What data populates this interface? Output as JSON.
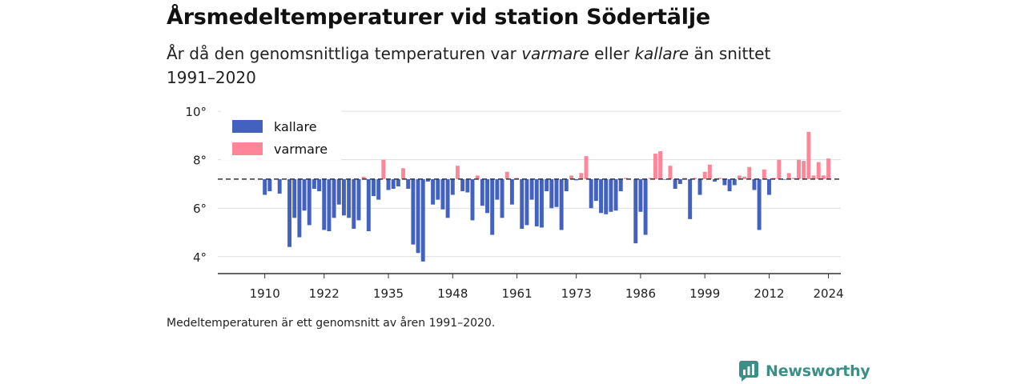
{
  "title": "Årsmedeltemperaturer vid station Södertälje",
  "subtitle": {
    "part1": "År då den genomsnittliga temperaturen var ",
    "warm_word": "varmare",
    "part2": " eller ",
    "cold_word": "kallare",
    "part3": " än snittet 1991–2020"
  },
  "note": "Medeltemperaturen är ett genomsnitt av åren 1991–2020.",
  "brand": {
    "name": "Newsworthy",
    "icon": "newsworthy-chart-icon",
    "color": "#3a8f86"
  },
  "chart_data": {
    "type": "bar",
    "baseline": 7.2,
    "baseline_style": "dashed",
    "ylim": [
      3.3,
      10.3
    ],
    "xlim": [
      1900.5,
      2026.5
    ],
    "yticks": [
      4,
      6,
      8,
      10
    ],
    "ytick_labels": [
      "4°",
      "6°",
      "8°",
      "10°"
    ],
    "xticks": [
      1910,
      1922,
      1935,
      1948,
      1961,
      1973,
      1986,
      1999,
      2012,
      2024
    ],
    "grid": true,
    "legend_position": "top-left",
    "colors": {
      "kallare": "#4361be",
      "varmare": "#ff8699",
      "grid": "#dddddd",
      "baseline": "#333333",
      "axis": "#333333"
    },
    "series": [
      {
        "name": "kallare",
        "color": "#4361be"
      },
      {
        "name": "varmare",
        "color": "#ff8699"
      }
    ],
    "x": [
      1910,
      1911,
      1912,
      1913,
      1914,
      1915,
      1916,
      1917,
      1918,
      1919,
      1920,
      1921,
      1922,
      1923,
      1924,
      1925,
      1926,
      1927,
      1928,
      1929,
      1930,
      1931,
      1932,
      1933,
      1934,
      1935,
      1936,
      1937,
      1938,
      1939,
      1940,
      1941,
      1942,
      1943,
      1944,
      1945,
      1946,
      1947,
      1948,
      1949,
      1950,
      1951,
      1952,
      1953,
      1954,
      1955,
      1956,
      1957,
      1958,
      1959,
      1960,
      1961,
      1962,
      1963,
      1964,
      1965,
      1966,
      1967,
      1968,
      1969,
      1970,
      1971,
      1972,
      1973,
      1974,
      1975,
      1976,
      1977,
      1978,
      1979,
      1980,
      1981,
      1982,
      1983,
      1984,
      1985,
      1986,
      1987,
      1988,
      1989,
      1990,
      1991,
      1992,
      1993,
      1994,
      1995,
      1996,
      1997,
      1998,
      1999,
      2000,
      2001,
      2002,
      2003,
      2004,
      2005,
      2006,
      2007,
      2008,
      2009,
      2010,
      2011,
      2012,
      2013,
      2014,
      2015,
      2016,
      2017,
      2018,
      2019,
      2020,
      2021,
      2022,
      2023,
      2024
    ],
    "values": [
      6.55,
      6.7,
      null,
      6.6,
      null,
      4.4,
      5.6,
      4.8,
      5.9,
      5.3,
      6.8,
      6.7,
      5.1,
      5.05,
      5.6,
      6.15,
      5.7,
      5.6,
      5.15,
      5.5,
      7.3,
      5.05,
      6.5,
      6.35,
      8.0,
      6.75,
      6.8,
      6.9,
      7.65,
      6.8,
      4.5,
      4.15,
      3.8,
      7.1,
      6.15,
      6.35,
      5.95,
      5.6,
      6.55,
      7.75,
      6.7,
      6.65,
      5.5,
      7.35,
      6.1,
      5.8,
      4.9,
      6.35,
      5.6,
      7.5,
      6.15,
      7.25,
      5.15,
      5.3,
      6.35,
      5.25,
      5.2,
      6.7,
      6.0,
      6.05,
      5.1,
      6.7,
      7.35,
      7.15,
      7.45,
      8.15,
      6.0,
      6.3,
      5.8,
      5.75,
      5.85,
      5.9,
      6.7,
      7.25,
      null,
      4.55,
      5.85,
      4.9,
      7.25,
      8.25,
      8.35,
      7.2,
      7.75,
      6.8,
      7.0,
      7.25,
      5.55,
      7.25,
      6.55,
      7.5,
      7.8,
      7.1,
      7.25,
      6.95,
      6.7,
      6.95,
      7.35,
      7.3,
      7.7,
      6.75,
      5.1,
      7.6,
      6.55,
      7.25,
      8.0,
      7.2,
      7.45,
      7.25,
      8.0,
      7.95,
      9.15,
      7.35,
      7.9,
      7.35,
      8.05
    ]
  }
}
